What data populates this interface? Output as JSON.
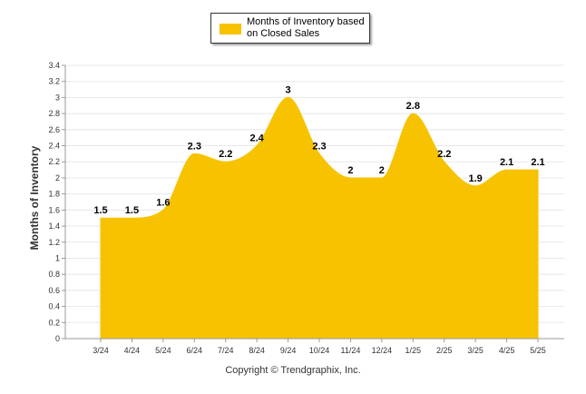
{
  "chart_data": {
    "type": "area",
    "categories": [
      "3/24",
      "4/24",
      "5/24",
      "6/24",
      "7/24",
      "8/24",
      "9/24",
      "10/24",
      "11/24",
      "12/24",
      "1/25",
      "2/25",
      "3/25",
      "4/25",
      "5/25"
    ],
    "series": [
      {
        "name": "Months of Inventory based on Closed Sales",
        "values": [
          1.5,
          1.5,
          1.6,
          2.3,
          2.2,
          2.4,
          3,
          2.3,
          2,
          2,
          2.8,
          2.2,
          1.9,
          2.1,
          2.1
        ],
        "labels": [
          "1.5",
          "1.5",
          "1.6",
          "2.3",
          "2.2",
          "2.4",
          "3",
          "2.3",
          "2",
          "2",
          "2.8",
          "2.2",
          "1.9",
          "2.1",
          "2.1"
        ]
      }
    ],
    "ylabel": "Months of Inventory",
    "xlabel": "",
    "ylim": [
      0,
      3.4
    ],
    "yticks": [
      "0",
      "0.2",
      "0.4",
      "0.6",
      "0.8",
      "1",
      "1.2",
      "1.4",
      "1.6",
      "1.8",
      "2",
      "2.2",
      "2.4",
      "2.6",
      "2.8",
      "3",
      "3.2",
      "3.4"
    ],
    "grid": true,
    "legend_position": "top-center",
    "colors": {
      "series": "#f7c200",
      "grid": "#e8e8e8",
      "axis": "#999999"
    }
  },
  "legend": {
    "label": "Months of Inventory based on Closed Sales"
  },
  "footer": {
    "copyright": "Copyright © Trendgraphix, Inc."
  }
}
